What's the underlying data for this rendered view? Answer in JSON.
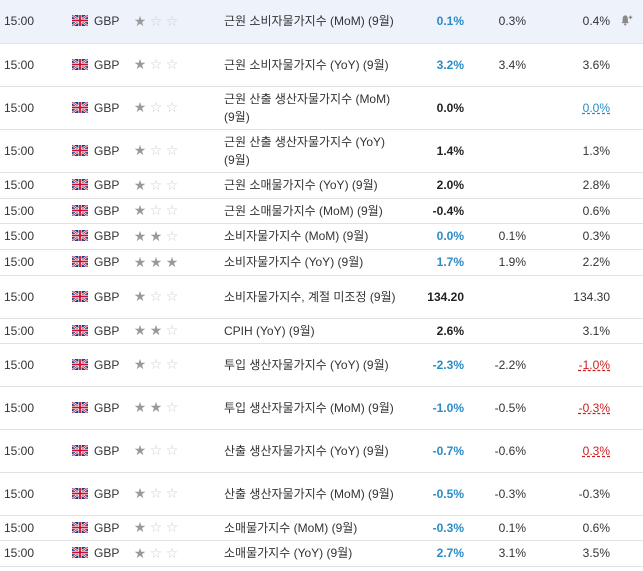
{
  "rows": [
    {
      "time": "15:00",
      "currency": "GBP",
      "stars": 1,
      "event": "근원 소비자물가지수 (MoM) (9월)",
      "actual": "0.1%",
      "actual_color": "blue",
      "forecast": "0.3%",
      "previous": "0.4%",
      "previous_style": "plain",
      "height": 43,
      "highlight": true,
      "alert": true
    },
    {
      "time": "15:00",
      "currency": "GBP",
      "stars": 1,
      "event": "근원 소비자물가지수 (YoY) (9월)",
      "actual": "3.2%",
      "actual_color": "blue",
      "forecast": "3.4%",
      "previous": "3.6%",
      "previous_style": "plain",
      "height": 43
    },
    {
      "time": "15:00",
      "currency": "GBP",
      "stars": 1,
      "event": "근원 산출 생산자물가지수 (MoM) (9월)",
      "actual": "0.0%",
      "actual_color": "black",
      "forecast": "",
      "previous": "0.0%",
      "previous_style": "underline-blue",
      "height": 43
    },
    {
      "time": "15:00",
      "currency": "GBP",
      "stars": 1,
      "event": "근원 산출 생산자물가지수 (YoY) (9월)",
      "actual": "1.4%",
      "actual_color": "black",
      "forecast": "",
      "previous": "1.3%",
      "previous_style": "plain",
      "height": 43
    },
    {
      "time": "15:00",
      "currency": "GBP",
      "stars": 1,
      "event": "근원 소매물가지수 (YoY) (9월)",
      "actual": "2.0%",
      "actual_color": "black",
      "forecast": "",
      "previous": "2.8%",
      "previous_style": "plain",
      "height": 26
    },
    {
      "time": "15:00",
      "currency": "GBP",
      "stars": 1,
      "event": "근원 소매물가지수 (MoM) (9월)",
      "actual": "-0.4%",
      "actual_color": "black",
      "forecast": "",
      "previous": "0.6%",
      "previous_style": "plain",
      "height": 25
    },
    {
      "time": "15:00",
      "currency": "GBP",
      "stars": 2,
      "event": "소비자물가지수 (MoM) (9월)",
      "actual": "0.0%",
      "actual_color": "blue",
      "forecast": "0.1%",
      "previous": "0.3%",
      "previous_style": "plain",
      "height": 26
    },
    {
      "time": "15:00",
      "currency": "GBP",
      "stars": 3,
      "event": "소비자물가지수 (YoY) (9월)",
      "actual": "1.7%",
      "actual_color": "blue",
      "forecast": "1.9%",
      "previous": "2.2%",
      "previous_style": "plain",
      "height": 26
    },
    {
      "time": "15:00",
      "currency": "GBP",
      "stars": 1,
      "event": "소비자물가지수, 계절 미조정 (9월)",
      "actual": "134.20",
      "actual_color": "black",
      "forecast": "",
      "previous": "134.30",
      "previous_style": "plain",
      "height": 43
    },
    {
      "time": "15:00",
      "currency": "GBP",
      "stars": 2,
      "event": "CPIH (YoY) (9월)",
      "actual": "2.6%",
      "actual_color": "black",
      "forecast": "",
      "previous": "3.1%",
      "previous_style": "plain",
      "height": 25
    },
    {
      "time": "15:00",
      "currency": "GBP",
      "stars": 1,
      "event": "투입 생산자물가지수 (YoY) (9월)",
      "actual": "-2.3%",
      "actual_color": "blue",
      "forecast": "-2.2%",
      "previous": "-1.0%",
      "previous_style": "underline-red",
      "height": 43
    },
    {
      "time": "15:00",
      "currency": "GBP",
      "stars": 2,
      "event": "투입 생산자물가지수 (MoM) (9월)",
      "actual": "-1.0%",
      "actual_color": "blue",
      "forecast": "-0.5%",
      "previous": "-0.3%",
      "previous_style": "underline-red",
      "height": 43
    },
    {
      "time": "15:00",
      "currency": "GBP",
      "stars": 1,
      "event": "산출 생산자물가지수 (YoY) (9월)",
      "actual": "-0.7%",
      "actual_color": "blue",
      "forecast": "-0.6%",
      "previous": "0.3%",
      "previous_style": "underline-red",
      "height": 43
    },
    {
      "time": "15:00",
      "currency": "GBP",
      "stars": 1,
      "event": "산출 생산자물가지수 (MoM) (9월)",
      "actual": "-0.5%",
      "actual_color": "blue",
      "forecast": "-0.3%",
      "previous": "-0.3%",
      "previous_style": "plain",
      "height": 43
    },
    {
      "time": "15:00",
      "currency": "GBP",
      "stars": 1,
      "event": "소매물가지수 (MoM) (9월)",
      "actual": "-0.3%",
      "actual_color": "blue",
      "forecast": "0.1%",
      "previous": "0.6%",
      "previous_style": "plain",
      "height": 25
    },
    {
      "time": "15:00",
      "currency": "GBP",
      "stars": 1,
      "event": "소매물가지수 (YoY) (9월)",
      "actual": "2.7%",
      "actual_color": "blue",
      "forecast": "3.1%",
      "previous": "3.5%",
      "previous_style": "plain",
      "height": 26
    }
  ],
  "icons": {
    "flag": "uk-flag-icon",
    "star": "star-icon",
    "alert": "bell-plus-icon"
  },
  "colors": {
    "actual_blue": "#2b8bc6",
    "previous_red": "#cc1f1f",
    "highlight_row": "#eef2fb",
    "star_on": "#9a9a9a",
    "star_off": "#cfcfcf"
  }
}
